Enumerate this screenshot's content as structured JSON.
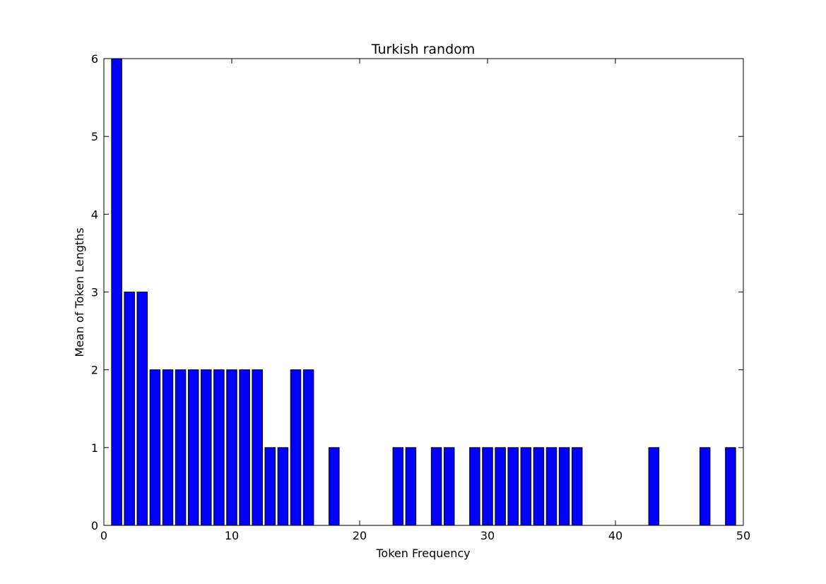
{
  "chart_data": {
    "type": "bar",
    "title": "Turkish random",
    "xlabel": "Token Frequency",
    "ylabel": "Mean of Token Lengths",
    "xlim": [
      0,
      50
    ],
    "ylim": [
      0,
      6
    ],
    "xticks": [
      0,
      10,
      20,
      30,
      40,
      50
    ],
    "yticks": [
      0,
      1,
      2,
      3,
      4,
      5,
      6
    ],
    "grid": false,
    "bar_color": "#0000ff",
    "bar_edge_color": "#000000",
    "bar_width": 0.8,
    "x": [
      1,
      2,
      3,
      4,
      5,
      6,
      7,
      8,
      9,
      10,
      11,
      12,
      13,
      14,
      15,
      16,
      18,
      23,
      24,
      26,
      27,
      29,
      30,
      31,
      32,
      33,
      34,
      35,
      36,
      37,
      43,
      47,
      49
    ],
    "values": [
      6,
      3,
      3,
      2,
      2,
      2,
      2,
      2,
      2,
      2,
      2,
      2,
      1,
      1,
      2,
      2,
      1,
      1,
      1,
      1,
      1,
      1,
      1,
      1,
      1,
      1,
      1,
      1,
      1,
      1,
      1,
      1,
      1
    ]
  }
}
